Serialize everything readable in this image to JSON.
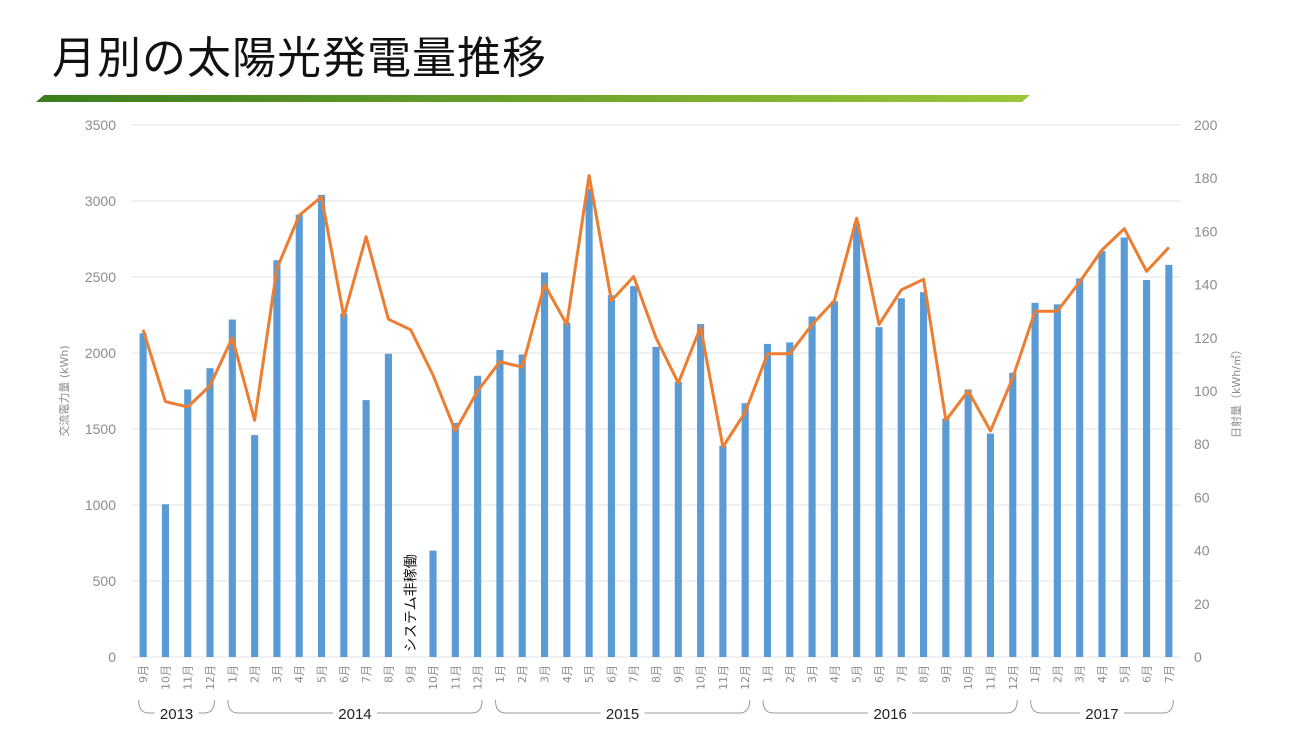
{
  "page": {
    "title": "月別の太陽光発電量推移"
  },
  "colors": {
    "bar": "#5b9bd5",
    "line": "#ed7d31",
    "grid": "#e3e3e3",
    "accent_start": "#3a7d1e",
    "accent_end": "#9cc63a"
  },
  "chart_data": {
    "type": "bar+line",
    "categories": [
      "9月",
      "10月",
      "11月",
      "12月",
      "1月",
      "2月",
      "3月",
      "4月",
      "5月",
      "6月",
      "7月",
      "8月",
      "9月",
      "10月",
      "11月",
      "12月",
      "1月",
      "2月",
      "3月",
      "4月",
      "5月",
      "6月",
      "7月",
      "8月",
      "9月",
      "10月",
      "11月",
      "12月",
      "1月",
      "2月",
      "3月",
      "4月",
      "5月",
      "6月",
      "7月",
      "8月",
      "9月",
      "10月",
      "11月",
      "12月",
      "1月",
      "2月",
      "3月",
      "4月",
      "5月",
      "6月",
      "7月"
    ],
    "series": [
      {
        "name": "交流電力量",
        "axis": "left",
        "kind": "bar",
        "values": [
          2130,
          1005,
          1760,
          1900,
          2220,
          1460,
          2610,
          2910,
          3040,
          2260,
          1690,
          1995,
          null,
          700,
          1540,
          1850,
          2020,
          1990,
          2530,
          2200,
          3080,
          2380,
          2440,
          2040,
          1810,
          2190,
          1390,
          1670,
          2060,
          2070,
          2240,
          2340,
          2850,
          2170,
          2360,
          2400,
          1570,
          1760,
          1470,
          1870,
          2330,
          2320,
          2490,
          2670,
          2760,
          2480,
          2580
        ]
      },
      {
        "name": "日射量",
        "axis": "right",
        "kind": "line",
        "values": [
          123,
          96,
          94,
          102,
          120,
          89,
          146,
          166,
          173,
          128,
          158,
          127,
          123,
          106,
          85,
          100,
          111,
          109,
          140,
          125,
          181,
          134,
          143,
          120,
          103,
          124,
          79,
          92,
          114,
          114,
          125,
          134,
          165,
          125,
          138,
          142,
          89,
          100,
          85,
          105,
          130,
          130,
          141,
          153,
          161,
          145,
          154
        ]
      }
    ],
    "ylabel_left": "交流電力量 (kWh)",
    "ylabel_right": "日射量（kWh/㎡）",
    "ylim_left": [
      0,
      3500
    ],
    "ylim_right": [
      0,
      200
    ],
    "yticks_left": [
      "0",
      "500",
      "1000",
      "1500",
      "2000",
      "2500",
      "3000",
      "3500"
    ],
    "yticks_right": [
      "0",
      "20",
      "40",
      "60",
      "80",
      "100",
      "120",
      "140",
      "160",
      "180",
      "200"
    ],
    "year_groups": [
      {
        "label": "2013",
        "start": 0,
        "end": 3
      },
      {
        "label": "2014",
        "start": 4,
        "end": 15
      },
      {
        "label": "2015",
        "start": 16,
        "end": 27
      },
      {
        "label": "2016",
        "start": 28,
        "end": 39
      },
      {
        "label": "2017",
        "start": 40,
        "end": 46
      }
    ],
    "annotations": [
      {
        "text": "システム非稼働",
        "index": 12
      }
    ],
    "grid": true
  }
}
